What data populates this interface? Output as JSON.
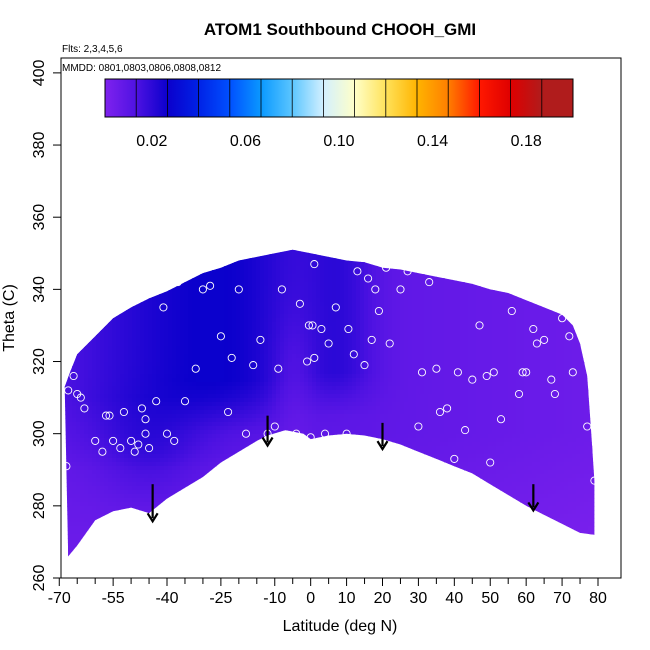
{
  "chart_data": {
    "type": "heatmap",
    "title": "ATOM1 Southbound CHOOH_GMI",
    "annotations": {
      "flights": "Flts: 2,3,4,5,6",
      "dates": "MMDD: 0801,0803,0806,0808,0812"
    },
    "xlabel": "Latitude (deg N)",
    "ylabel": "Theta (C)",
    "xlim": [
      -70,
      80
    ],
    "ylim": [
      260,
      405
    ],
    "x_ticks": [
      -70,
      -55,
      -40,
      -25,
      -10,
      0,
      10,
      20,
      30,
      40,
      50,
      60,
      70,
      80
    ],
    "x_minor_ticks": [
      -65,
      -60,
      -50,
      -45,
      -35,
      -30,
      -20,
      -15,
      -5,
      5,
      15,
      25,
      35,
      45,
      55,
      65,
      75
    ],
    "y_ticks": [
      260,
      280,
      300,
      320,
      340,
      360,
      380,
      400
    ],
    "colorbar": {
      "range": [
        0,
        0.2
      ],
      "tick_values": [
        0.02,
        0.06,
        0.1,
        0.14,
        0.18
      ],
      "tick_labels": [
        "0.02",
        "0.06",
        "0.10",
        "0.14",
        "0.18"
      ],
      "colors": [
        "#7f22ee",
        "#4e12e2",
        "#0b00cc",
        "#0022e6",
        "#0050ff",
        "#0a99ff",
        "#5cc6ff",
        "#d3f0ff",
        "#ffffc8",
        "#ffe25a",
        "#ffb400",
        "#ff7e00",
        "#ff1800",
        "#de0000",
        "#b01c1c"
      ]
    },
    "domain_boundary": {
      "bottom": [
        [
          -67.5,
          266
        ],
        [
          -65,
          269
        ],
        [
          -60,
          276
        ],
        [
          -55,
          278.5
        ],
        [
          -50,
          279.5
        ],
        [
          -45,
          278
        ],
        [
          -40,
          282
        ],
        [
          -35,
          285
        ],
        [
          -30,
          288
        ],
        [
          -25,
          292
        ],
        [
          -20,
          295
        ],
        [
          -15,
          298
        ],
        [
          -12,
          299.5
        ],
        [
          -7,
          301
        ],
        [
          -2,
          300
        ],
        [
          0,
          298.5
        ],
        [
          5,
          299.5
        ],
        [
          10,
          300
        ],
        [
          15,
          299.5
        ],
        [
          20,
          298.5
        ],
        [
          25,
          297
        ],
        [
          30,
          295
        ],
        [
          35,
          293
        ],
        [
          40,
          291
        ],
        [
          45,
          289
        ],
        [
          50,
          286
        ],
        [
          55,
          283
        ],
        [
          60,
          280
        ],
        [
          65,
          277.5
        ],
        [
          70,
          275
        ],
        [
          75,
          272.5
        ],
        [
          79,
          272
        ]
      ],
      "top": [
        [
          79,
          287
        ],
        [
          78,
          302
        ],
        [
          77,
          316
        ],
        [
          75,
          325
        ],
        [
          73,
          330
        ],
        [
          70,
          333
        ],
        [
          65,
          335
        ],
        [
          60,
          337
        ],
        [
          55,
          339
        ],
        [
          50,
          340
        ],
        [
          45,
          341.5
        ],
        [
          40,
          342.5
        ],
        [
          35,
          343.5
        ],
        [
          30,
          344.5
        ],
        [
          25,
          345.5
        ],
        [
          20,
          346
        ],
        [
          15,
          347.5
        ],
        [
          10,
          348
        ],
        [
          5,
          349
        ],
        [
          0,
          350
        ],
        [
          -5,
          351
        ],
        [
          -10,
          350
        ],
        [
          -15,
          349
        ],
        [
          -20,
          348
        ],
        [
          -25,
          346
        ],
        [
          -30,
          344.5
        ],
        [
          -35,
          342
        ],
        [
          -40,
          339.5
        ],
        [
          -45,
          337.5
        ],
        [
          -50,
          335
        ],
        [
          -55,
          332
        ],
        [
          -60,
          327
        ],
        [
          -65,
          322
        ],
        [
          -67,
          317
        ],
        [
          -68.5,
          313
        ]
      ]
    },
    "field_model": "base value 0.012 (violet); higher values (~0.02-0.03, dark blue) over the south and tropics above theta ~300, lower values (~0.005, violet) near the surface and in the Northern Hemisphere; a low-value tongue near -15 to 5 deg N and 0-15 deg N below 315",
    "observation_points": [
      [
        -68,
        291
      ],
      [
        -67.5,
        312
      ],
      [
        -66,
        316
      ],
      [
        -65,
        311
      ],
      [
        -64,
        310
      ],
      [
        -63,
        307
      ],
      [
        -60,
        298
      ],
      [
        -58,
        295
      ],
      [
        -57,
        305
      ],
      [
        -56,
        305
      ],
      [
        -55,
        298
      ],
      [
        -53,
        296
      ],
      [
        -52,
        306
      ],
      [
        -50,
        298
      ],
      [
        -49,
        295
      ],
      [
        -48,
        297
      ],
      [
        -47,
        307
      ],
      [
        -46,
        300
      ],
      [
        -46,
        304
      ],
      [
        -45,
        296
      ],
      [
        -43,
        309
      ],
      [
        -41,
        335
      ],
      [
        -40,
        300
      ],
      [
        -38,
        298
      ],
      [
        -37,
        342
      ],
      [
        -35,
        309
      ],
      [
        -32,
        318
      ],
      [
        -30,
        340
      ],
      [
        -28,
        341
      ],
      [
        -25,
        327
      ],
      [
        -23,
        306
      ],
      [
        -22,
        321
      ],
      [
        -20,
        340
      ],
      [
        -18,
        300
      ],
      [
        -16,
        319
      ],
      [
        -14,
        326
      ],
      [
        -12,
        300
      ],
      [
        -10,
        302
      ],
      [
        -9,
        318
      ],
      [
        -8,
        340
      ],
      [
        -4,
        300
      ],
      [
        -3,
        336
      ],
      [
        -1,
        320
      ],
      [
        -0.5,
        330
      ],
      [
        0,
        299
      ],
      [
        0.5,
        330
      ],
      [
        1,
        321
      ],
      [
        1,
        347
      ],
      [
        3,
        329
      ],
      [
        4,
        300
      ],
      [
        5,
        325
      ],
      [
        7,
        335
      ],
      [
        10,
        300
      ],
      [
        10.5,
        329
      ],
      [
        12,
        322
      ],
      [
        13,
        345
      ],
      [
        15,
        319
      ],
      [
        16,
        343
      ],
      [
        17,
        326
      ],
      [
        18,
        340
      ],
      [
        19,
        334
      ],
      [
        21,
        346
      ],
      [
        22,
        325
      ],
      [
        25,
        340
      ],
      [
        27,
        345
      ],
      [
        30,
        302
      ],
      [
        31,
        317
      ],
      [
        33,
        342
      ],
      [
        35,
        318
      ],
      [
        36,
        306
      ],
      [
        38,
        307
      ],
      [
        40,
        293
      ],
      [
        41,
        317
      ],
      [
        43,
        301
      ],
      [
        45,
        315
      ],
      [
        47,
        330
      ],
      [
        49,
        316
      ],
      [
        50,
        292
      ],
      [
        51,
        317
      ],
      [
        53,
        304
      ],
      [
        56,
        334
      ],
      [
        58,
        311
      ],
      [
        59,
        317
      ],
      [
        60,
        317
      ],
      [
        62,
        329
      ],
      [
        63,
        325
      ],
      [
        65,
        326
      ],
      [
        67,
        315
      ],
      [
        68,
        311
      ],
      [
        70,
        332
      ],
      [
        72,
        327
      ],
      [
        73,
        317
      ],
      [
        77,
        302
      ],
      [
        79,
        287
      ]
    ],
    "arrows": [
      {
        "lat": -44,
        "theta_from": 286,
        "theta_to": 276
      },
      {
        "lat": -12,
        "theta_from": 305,
        "theta_to": 297
      },
      {
        "lat": 20,
        "theta_from": 303,
        "theta_to": 296
      },
      {
        "lat": 62,
        "theta_from": 286,
        "theta_to": 279
      }
    ]
  }
}
